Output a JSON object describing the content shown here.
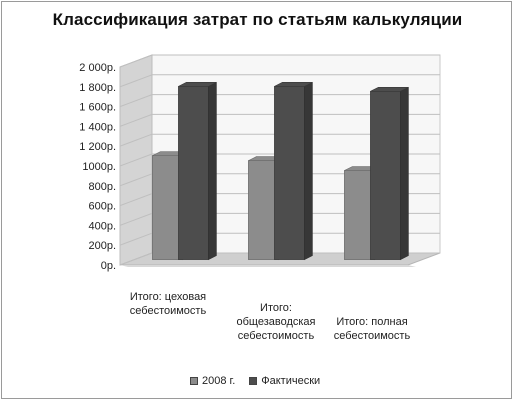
{
  "chart_data": {
    "type": "bar",
    "title": "Классификация затрат по статьям калькуляции",
    "categories": [
      [
        "Итого: цеховая",
        "себестоимость"
      ],
      [
        "Итого:",
        "общезаводская",
        "себестоимость"
      ],
      [
        "Итого: полная",
        "себестоимость"
      ]
    ],
    "series": [
      {
        "name": "2008 г.",
        "values": [
          1050,
          1000,
          900
        ],
        "color": "#8c8c8c"
      },
      {
        "name": "Фактически",
        "values": [
          1750,
          1750,
          1700
        ],
        "color": "#4d4d4d"
      }
    ],
    "y_ticks": [
      "0р.",
      "200р.",
      "400р.",
      "600р.",
      "800р.",
      "1000р.",
      "1 200р.",
      "1 400р.",
      "1 600р.",
      "1 800р.",
      "2 000р."
    ],
    "ylim": [
      0,
      2000
    ],
    "grid": true,
    "legend_position": "bottom"
  }
}
